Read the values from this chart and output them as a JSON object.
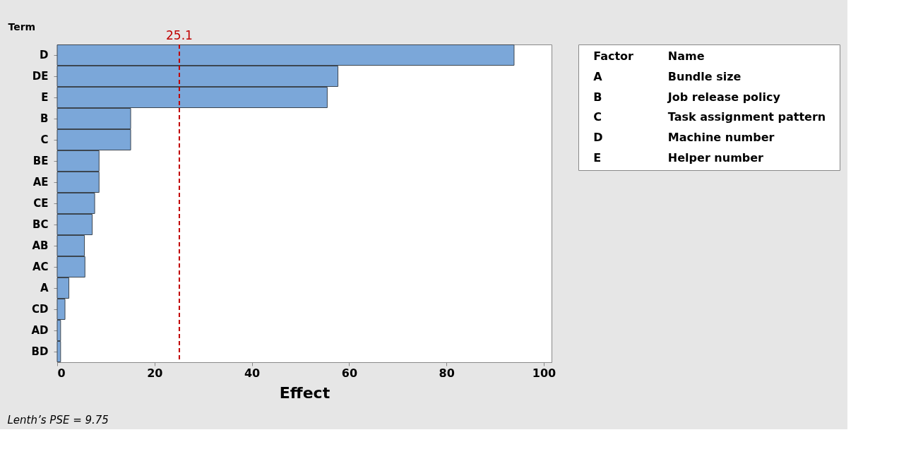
{
  "chart_data": {
    "type": "bar",
    "orientation": "horizontal",
    "categories": [
      "D",
      "DE",
      "E",
      "B",
      "C",
      "BE",
      "AE",
      "CE",
      "BC",
      "AB",
      "AC",
      "A",
      "CD",
      "AD",
      "BD"
    ],
    "values": [
      93.9,
      57.7,
      55.5,
      15.1,
      15.1,
      8.6,
      8.6,
      7.7,
      7.2,
      5.6,
      5.7,
      2.4,
      1.6,
      0.7,
      0.7
    ],
    "color": "#7ba7d9",
    "xlabel": "Effect",
    "ylabel": "Term",
    "xlim": [
      0,
      101.6
    ],
    "xticks": [
      0,
      20,
      40,
      60,
      80,
      100
    ],
    "ref_lines": [
      {
        "axis": "x",
        "value": 25.1,
        "label": "25.1",
        "color": "#c00000",
        "line_style": "dashed"
      }
    ],
    "annotations": [
      "Factor",
      "Name",
      "A",
      "Bundle size",
      "B",
      "Job release policy",
      "C",
      "Task assignment pattern",
      "D",
      "Machine number",
      "E",
      "Helper number",
      "Lenth’s PSE = 9.75"
    ],
    "grid": false
  }
}
